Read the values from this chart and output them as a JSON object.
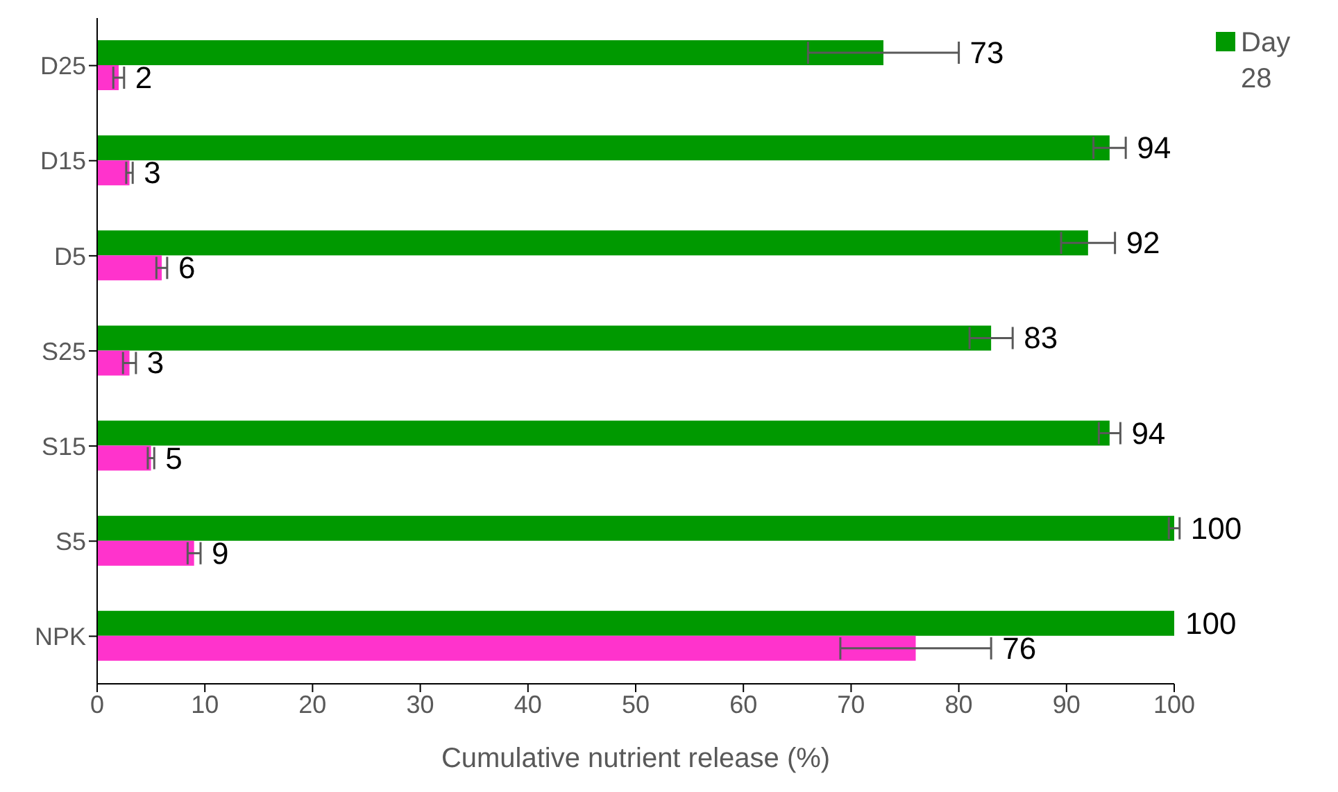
{
  "chart_data": {
    "type": "bar",
    "orientation": "horizontal",
    "categories": [
      "D25",
      "D15",
      "D5",
      "S25",
      "S15",
      "S5",
      "NPK"
    ],
    "series": [
      {
        "name": "Day 28",
        "color": "#009900",
        "values": [
          73,
          94,
          92,
          83,
          94,
          100,
          100
        ],
        "errors": [
          7,
          1.5,
          2.5,
          2,
          1,
          0.5,
          null
        ]
      },
      {
        "color": "#ff33cc",
        "values": [
          2,
          3,
          6,
          3,
          5,
          9,
          76
        ],
        "errors": [
          0.5,
          0.3,
          0.5,
          0.6,
          0.3,
          0.6,
          7
        ]
      }
    ],
    "xlabel": "Cumulative nutrient release (%)",
    "xlim": [
      0,
      100
    ],
    "xticks": [
      0,
      10,
      20,
      30,
      40,
      50,
      60,
      70,
      80,
      90,
      100
    ],
    "data_labels": true,
    "legend": "top right",
    "grid": false
  }
}
